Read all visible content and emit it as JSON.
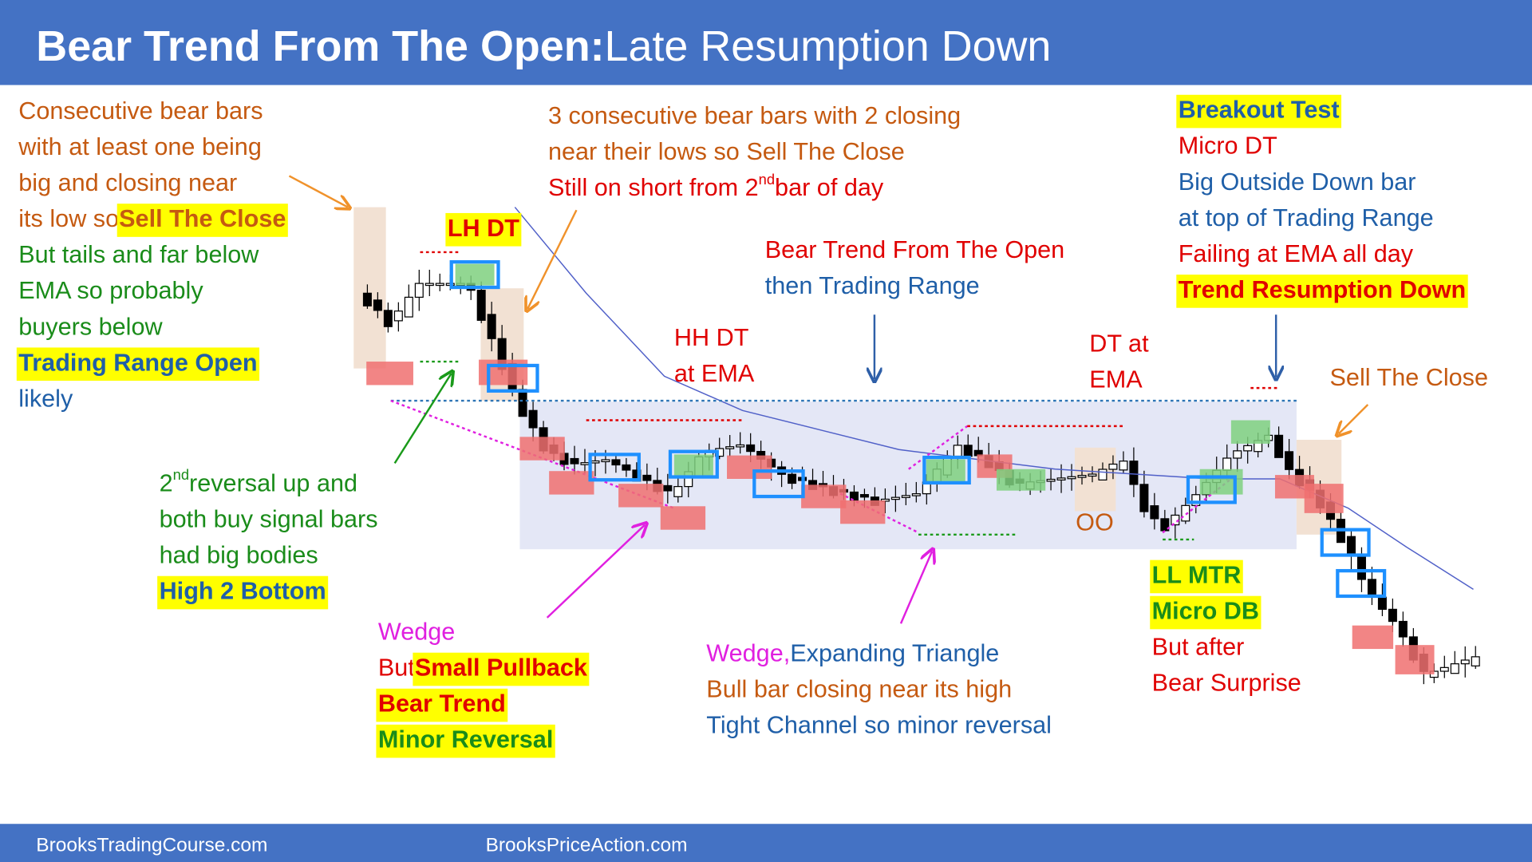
{
  "header": {
    "title": [
      "Bear Trend From The Open:",
      " Late Resumption Down"
    ]
  },
  "footer": {
    "left": "BrooksTradingCourse.com",
    "right": "BrooksPriceAction.com"
  },
  "annotations": [
    {
      "lines": [
        [
          "Consecutive bear bars"
        ],
        [
          "with at least one being"
        ],
        [
          "big and closing near"
        ],
        [
          "its low so ",
          "Sell The Close"
        ],
        [
          "But tails and far below"
        ],
        [
          "EMA so probably"
        ],
        [
          "buyers below"
        ],
        [
          "Trading Range Open"
        ],
        [
          "likely"
        ]
      ]
    },
    {
      "lines": [
        [
          "3 consecutive bear bars with 2 closing"
        ],
        [
          "near their lows so Sell The Close"
        ],
        [
          "Still on short from 2",
          "nd",
          " bar of day"
        ]
      ]
    },
    {
      "lines": [
        [
          "LH DT"
        ]
      ]
    },
    {
      "lines": [
        [
          "Bear Trend From The Open"
        ],
        [
          "then Trading Range"
        ]
      ]
    },
    {
      "lines": [
        [
          "HH DT"
        ],
        [
          "at EMA"
        ]
      ]
    },
    {
      "lines": [
        [
          "DT at"
        ],
        [
          "EMA"
        ]
      ]
    },
    {
      "lines": [
        [
          "Breakout Test"
        ],
        [
          "Micro DT"
        ],
        [
          "Big Outside Down bar"
        ],
        [
          "at top of Trading Range"
        ],
        [
          "Failing at EMA all day"
        ],
        [
          "Trend Resumption Down"
        ]
      ]
    },
    {
      "lines": [
        [
          "Sell The Close"
        ]
      ]
    },
    {
      "lines": [
        [
          "2",
          "nd",
          " reversal up and"
        ],
        [
          "both buy signal bars"
        ],
        [
          "had big bodies"
        ],
        [
          "High 2 Bottom"
        ]
      ]
    },
    {
      "lines": [
        [
          "Wedge"
        ],
        [
          "But ",
          "Small Pullback"
        ],
        [
          "Bear Trend"
        ],
        [
          "Minor Reversal"
        ]
      ]
    },
    {
      "lines": [
        [
          "Wedge, ",
          "Expanding Triangle"
        ],
        [
          "Bull bar closing near its high"
        ],
        [
          "Tight Channel so minor reversal"
        ]
      ]
    },
    {
      "lines": [
        [
          "OO"
        ]
      ]
    },
    {
      "lines": [
        [
          "LL MTR"
        ],
        [
          "Micro DB"
        ],
        [
          "But after"
        ],
        [
          "Bear Surprise"
        ]
      ]
    }
  ]
}
